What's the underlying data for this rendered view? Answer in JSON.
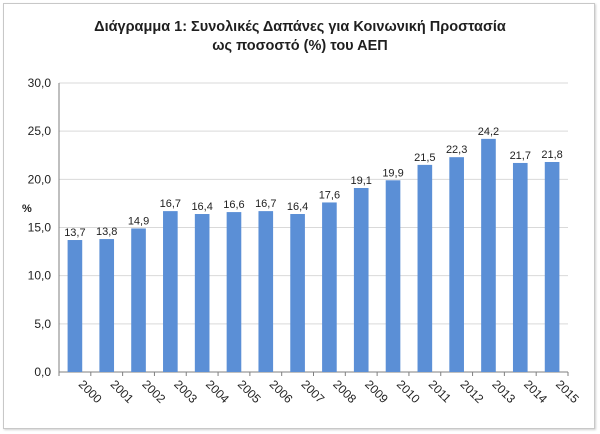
{
  "chart_data": {
    "type": "bar",
    "title_line1": "Διάγραμμα 1: Συνολικές Δαπάνες για Κοινωνική Προστασία",
    "title_line2": "ως ποσοστό (%) του ΑΕΠ",
    "xlabel": "",
    "ylabel": "%",
    "categories": [
      "2000",
      "2001",
      "2002",
      "2003",
      "2004",
      "2005",
      "2006",
      "2007",
      "2008",
      "2009",
      "2010",
      "2011",
      "2012",
      "2013",
      "2014",
      "2015"
    ],
    "values": [
      13.7,
      13.8,
      14.9,
      16.7,
      16.4,
      16.6,
      16.7,
      16.4,
      17.6,
      19.1,
      19.9,
      21.5,
      22.3,
      24.2,
      21.7,
      21.8
    ],
    "data_labels": [
      "13,7",
      "13,8",
      "14,9",
      "16,7",
      "16,4",
      "16,6",
      "16,7",
      "16,4",
      "17,6",
      "19,1",
      "19,9",
      "21,5",
      "22,3",
      "24,2",
      "21,7",
      "21,8"
    ],
    "ylim": [
      0,
      30
    ],
    "yticks": [
      0,
      5,
      10,
      15,
      20,
      25,
      30
    ],
    "ytick_labels": [
      "0,0",
      "5,0",
      "10,0",
      "15,0",
      "20,0",
      "25,0",
      "30,0"
    ],
    "grid": true,
    "bar_color": "#5b8fd6",
    "grid_color": "#d9d9d9"
  }
}
